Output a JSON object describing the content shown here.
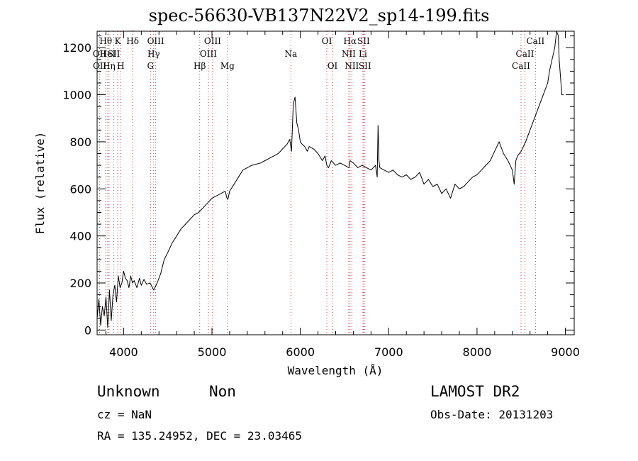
{
  "chart_data": {
    "type": "line",
    "title": "spec-56630-VB137N22V2_sp14-199.fits",
    "xlabel": "Wavelength (Å)",
    "ylabel": "Flux (relative)",
    "xlim": [
      3700,
      9100
    ],
    "ylim": [
      -20,
      1270
    ],
    "x_ticks": [
      4000,
      5000,
      6000,
      7000,
      8000,
      9000
    ],
    "y_ticks": [
      0,
      200,
      400,
      600,
      800,
      1000,
      1200
    ],
    "series": [
      {
        "x": [
          3700,
          3720,
          3740,
          3760,
          3780,
          3800,
          3820,
          3840,
          3860,
          3880,
          3900,
          3920,
          3940,
          3960,
          3980,
          4000,
          4020,
          4040,
          4060,
          4080,
          4100,
          4120,
          4150,
          4180,
          4200,
          4230,
          4260,
          4300,
          4340,
          4380,
          4420,
          4460,
          4500,
          4550,
          4600,
          4650,
          4700,
          4750,
          4800,
          4850,
          4900,
          4950,
          5000,
          5050,
          5100,
          5150,
          5170,
          5180,
          5200,
          5250,
          5300,
          5350,
          5400,
          5450,
          5500,
          5550,
          5600,
          5650,
          5700,
          5750,
          5800,
          5850,
          5880,
          5900,
          5920,
          5940,
          5960,
          5980,
          6000,
          6020,
          6050,
          6080,
          6100,
          6150,
          6200,
          6250,
          6280,
          6300,
          6320,
          6350,
          6400,
          6450,
          6500,
          6550,
          6563,
          6600,
          6650,
          6700,
          6750,
          6800,
          6850,
          6870,
          6880,
          6890,
          6900,
          6950,
          7000,
          7050,
          7100,
          7150,
          7200,
          7250,
          7300,
          7350,
          7400,
          7450,
          7500,
          7550,
          7600,
          7650,
          7700,
          7750,
          7800,
          7850,
          7900,
          7950,
          8000,
          8050,
          8100,
          8150,
          8200,
          8250,
          8300,
          8350,
          8400,
          8420,
          8440,
          8460,
          8500,
          8550,
          8600,
          8650,
          8700,
          8750,
          8800,
          8820,
          8850,
          8880,
          8900,
          8920,
          8930,
          8950,
          8960,
          8980
        ],
        "y": [
          50,
          130,
          20,
          100,
          60,
          140,
          10,
          170,
          40,
          150,
          190,
          120,
          230,
          180,
          200,
          250,
          220,
          210,
          180,
          230,
          200,
          210,
          180,
          220,
          190,
          215,
          195,
          200,
          170,
          200,
          240,
          300,
          330,
          370,
          400,
          430,
          450,
          470,
          490,
          500,
          520,
          540,
          560,
          570,
          580,
          590,
          560,
          555,
          590,
          620,
          650,
          680,
          690,
          700,
          705,
          710,
          720,
          730,
          740,
          750,
          770,
          790,
          810,
          760,
          960,
          990,
          880,
          850,
          800,
          790,
          780,
          760,
          780,
          770,
          750,
          720,
          740,
          700,
          690,
          720,
          700,
          710,
          700,
          690,
          720,
          710,
          690,
          700,
          690,
          680,
          700,
          650,
          870,
          720,
          690,
          680,
          670,
          680,
          660,
          650,
          660,
          640,
          650,
          670,
          620,
          640,
          610,
          620,
          580,
          600,
          560,
          620,
          600,
          610,
          630,
          650,
          660,
          680,
          700,
          720,
          760,
          800,
          750,
          720,
          680,
          620,
          720,
          740,
          760,
          800,
          850,
          900,
          950,
          1000,
          1050,
          1100,
          1150,
          1200,
          1280,
          1250,
          1150,
          1050,
          1000,
          1000
        ]
      }
    ],
    "line_markers": [
      {
        "label": "Hθ",
        "x": 3798,
        "row": 1
      },
      {
        "label": "OII",
        "x": 3727,
        "row": 2
      },
      {
        "label": "OII",
        "x": 3729,
        "row": 3
      },
      {
        "label": "HeI",
        "x": 3820,
        "row": 2
      },
      {
        "label": "Hη",
        "x": 3835,
        "row": 3
      },
      {
        "label": "K",
        "x": 3934,
        "row": 1
      },
      {
        "label": "SII",
        "x": 3889,
        "row": 2
      },
      {
        "label": "H",
        "x": 3968,
        "row": 3
      },
      {
        "label": "Hδ",
        "x": 4102,
        "row": 1
      },
      {
        "label": "OIII",
        "x": 4363,
        "row": 1
      },
      {
        "label": "Hγ",
        "x": 4340,
        "row": 2
      },
      {
        "label": "G",
        "x": 4304,
        "row": 3
      },
      {
        "label": "OIII",
        "x": 5007,
        "row": 1
      },
      {
        "label": "OIII",
        "x": 4959,
        "row": 2
      },
      {
        "label": "Hβ",
        "x": 4861,
        "row": 3
      },
      {
        "label": "Mg",
        "x": 5175,
        "row": 3
      },
      {
        "label": "Na",
        "x": 5893,
        "row": 2
      },
      {
        "label": "OI",
        "x": 6300,
        "row": 1
      },
      {
        "label": "OI",
        "x": 6364,
        "row": 3
      },
      {
        "label": "Hα",
        "x": 6563,
        "row": 1
      },
      {
        "label": "SII",
        "x": 6716,
        "row": 1
      },
      {
        "label": "NII",
        "x": 6548,
        "row": 2
      },
      {
        "label": "Li",
        "x": 6708,
        "row": 2
      },
      {
        "label": "NII",
        "x": 6583,
        "row": 3
      },
      {
        "label": "SII",
        "x": 6731,
        "row": 3
      },
      {
        "label": "CaII",
        "x": 8662,
        "row": 1
      },
      {
        "label": "CaII",
        "x": 8542,
        "row": 2
      },
      {
        "label": "CaII",
        "x": 8498,
        "row": 3
      }
    ]
  },
  "info": {
    "class": "Unknown",
    "subclass": "Non",
    "survey": "LAMOST DR2",
    "cz": "cz = NaN",
    "obs_date": "Obs-Date: 20131203",
    "coords": "RA = 135.24952, DEC =  23.03465"
  }
}
